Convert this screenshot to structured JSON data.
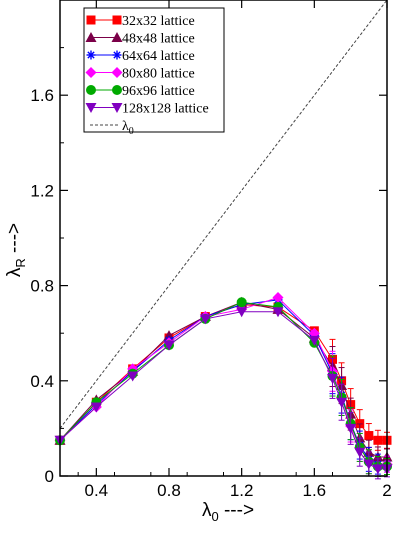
{
  "chart_data": {
    "type": "line",
    "xlabel": "λ0 --->",
    "ylabel": "λR --->",
    "xlim": [
      0.2,
      2.0
    ],
    "ylim": [
      0.0,
      2.0
    ],
    "xticks": [
      0.4,
      0.8,
      1.2,
      1.6,
      2.0
    ],
    "xtick_labels": [
      "0.4",
      "0.8",
      "1.2",
      "1.6",
      "2"
    ],
    "yticks": [
      0,
      0.4,
      0.8,
      1.2,
      1.6
    ],
    "ytick_labels": [
      "0",
      "0.4",
      "0.8",
      "1.2",
      "1.6"
    ],
    "grid": false,
    "legend_position": "top-left",
    "series": [
      {
        "name": "32x32 lattice",
        "color": "#ff0000",
        "marker": "square",
        "x": [
          0.2,
          0.4,
          0.6,
          0.8,
          1.0,
          1.2,
          1.4,
          1.6,
          1.7,
          1.75,
          1.8,
          1.85,
          1.9,
          1.95,
          2.0
        ],
        "y": [
          0.15,
          0.31,
          0.45,
          0.58,
          0.67,
          0.72,
          0.71,
          0.61,
          0.49,
          0.4,
          0.3,
          0.22,
          0.17,
          0.15,
          0.15
        ]
      },
      {
        "name": "48x48 lattice",
        "color": "#7b0048",
        "marker": "triangle-up",
        "x": [
          0.2,
          0.4,
          0.6,
          0.8,
          1.0,
          1.2,
          1.4,
          1.6,
          1.7,
          1.75,
          1.8,
          1.85,
          1.9,
          1.95,
          2.0
        ],
        "y": [
          0.15,
          0.32,
          0.44,
          0.59,
          0.67,
          0.73,
          0.7,
          0.58,
          0.46,
          0.38,
          0.26,
          0.16,
          0.1,
          0.08,
          0.08
        ]
      },
      {
        "name": "64x64 lattice",
        "color": "#0000ff",
        "marker": "asterisk",
        "x": [
          0.2,
          0.4,
          0.6,
          0.8,
          1.0,
          1.2,
          1.4,
          1.6,
          1.7,
          1.75,
          1.8,
          1.85,
          1.9,
          1.95,
          2.0
        ],
        "y": [
          0.15,
          0.3,
          0.44,
          0.57,
          0.67,
          0.72,
          0.74,
          0.59,
          0.43,
          0.34,
          0.22,
          0.13,
          0.07,
          0.05,
          0.05
        ]
      },
      {
        "name": "80x80 lattice",
        "color": "#ff00ff",
        "marker": "diamond",
        "x": [
          0.2,
          0.4,
          0.6,
          0.8,
          1.0,
          1.2,
          1.4,
          1.6,
          1.7,
          1.75,
          1.8,
          1.85,
          1.9,
          1.95,
          2.0
        ],
        "y": [
          0.15,
          0.29,
          0.45,
          0.56,
          0.67,
          0.7,
          0.75,
          0.6,
          0.44,
          0.33,
          0.21,
          0.12,
          0.06,
          0.04,
          0.05
        ]
      },
      {
        "name": "96x96 lattice",
        "color": "#00aa00",
        "marker": "circle",
        "x": [
          0.2,
          0.4,
          0.6,
          0.8,
          1.0,
          1.2,
          1.4,
          1.6,
          1.7,
          1.75,
          1.8,
          1.85,
          1.9,
          1.95,
          2.0
        ],
        "y": [
          0.15,
          0.31,
          0.43,
          0.55,
          0.66,
          0.73,
          0.71,
          0.56,
          0.42,
          0.33,
          0.22,
          0.12,
          0.06,
          0.04,
          0.04
        ]
      },
      {
        "name": "128x128 lattice",
        "color": "#8000c0",
        "marker": "triangle-down",
        "x": [
          0.2,
          0.4,
          0.6,
          0.8,
          1.0,
          1.2,
          1.4,
          1.6,
          1.7,
          1.75,
          1.8,
          1.85,
          1.9,
          1.95,
          2.0
        ],
        "y": [
          0.15,
          0.29,
          0.42,
          0.55,
          0.66,
          0.69,
          0.69,
          0.57,
          0.41,
          0.31,
          0.2,
          0.1,
          0.05,
          0.03,
          0.03
        ]
      },
      {
        "name": "λ0",
        "color": "#000000",
        "marker": "none",
        "style": "dashed",
        "x": [
          0.2,
          2.0
        ],
        "y": [
          0.2,
          2.0
        ]
      }
    ]
  }
}
